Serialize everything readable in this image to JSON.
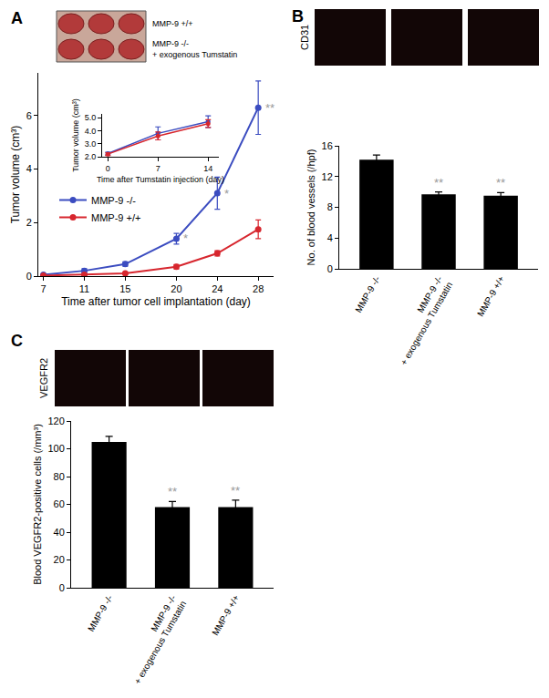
{
  "figure": {
    "panel_labels": [
      "A",
      "B",
      "C"
    ],
    "photo_labels": {
      "A": [
        "MMP-9 +/+",
        "MMP-9 -/- + exogenous Tumstatin"
      ],
      "B": "CD31",
      "C": "VEGFR2"
    }
  },
  "chart_data": [
    {
      "type": "line",
      "x_label": "Time after tumor cell implantation (day)",
      "y_label": "Tumor volume (cm³)",
      "x": [
        7,
        11,
        15,
        20,
        24,
        28
      ],
      "xlim": [
        6.5,
        29.5
      ],
      "xticks": [
        7,
        11,
        15,
        20,
        24,
        28
      ],
      "ylim": [
        0,
        7.6
      ],
      "yticks": [
        0,
        2,
        4,
        6
      ],
      "legend": "upper left",
      "marker": "circle",
      "series": [
        {
          "name": "MMP-9 -/-",
          "color": "#3b4cc0",
          "values": [
            0.05,
            0.2,
            0.45,
            1.4,
            3.1,
            6.3
          ],
          "errors": [
            0.02,
            0.08,
            0.08,
            0.2,
            0.6,
            1.0
          ],
          "significance": [
            null,
            null,
            null,
            "*",
            "*",
            "**"
          ]
        },
        {
          "name": "MMP-9 +/+",
          "color": "#d7262e",
          "values": [
            0.02,
            0.05,
            0.1,
            0.35,
            0.85,
            1.75
          ],
          "errors": [
            0.01,
            0.02,
            0.03,
            0.08,
            0.1,
            0.35
          ]
        }
      ]
    },
    {
      "type": "line",
      "x_label": "Time after Tumstatin injection (day)",
      "y_label": "Tumor volume (cm³)",
      "x": [
        0,
        7,
        14
      ],
      "xlim": [
        -0.8,
        15.5
      ],
      "xticks": [
        0,
        7,
        14
      ],
      "ylim": [
        2.0,
        5.3
      ],
      "yticks": [
        {
          "value": 2,
          "label": "2.0"
        },
        {
          "value": 3,
          "label": "3.0"
        },
        {
          "value": 4,
          "label": "4.0"
        },
        {
          "value": 5,
          "label": "5.0"
        }
      ],
      "marker": "circle",
      "series": [
        {
          "color": "#3b4cc0",
          "values": [
            2.25,
            3.8,
            4.7
          ],
          "errors": [
            0.1,
            0.5,
            0.45
          ]
        },
        {
          "color": "#d7262e",
          "values": [
            2.2,
            3.6,
            4.55
          ],
          "errors": [
            0.1,
            0.3,
            0.3
          ]
        }
      ]
    },
    {
      "type": "bar",
      "y_label": "No. of blood vessels (/hpf)",
      "categories": [
        "MMP-9 -/-",
        "MMP-9 -/- + exogenous Tumstatin",
        "MMP-9 +/+"
      ],
      "values": [
        14.2,
        9.7,
        9.5
      ],
      "errors": [
        0.6,
        0.3,
        0.4
      ],
      "significance": [
        null,
        "**",
        "**"
      ],
      "color": "#000000",
      "ylim": [
        0,
        16
      ],
      "yticks": [
        0,
        4,
        8,
        12,
        16
      ]
    },
    {
      "type": "bar",
      "y_label": "Blood VEGFR2-positive cells (/mm³)",
      "categories": [
        "MMP-9 -/-",
        "MMP-9 -/- + exogenous Tumstatin",
        "MMP-9 +/+"
      ],
      "values": [
        105,
        58,
        58
      ],
      "errors": [
        4,
        4,
        5
      ],
      "significance": [
        null,
        "**",
        "**"
      ],
      "color": "#000000",
      "ylim": [
        0,
        120
      ],
      "yticks": [
        0,
        20,
        40,
        60,
        80,
        100,
        120
      ]
    }
  ]
}
